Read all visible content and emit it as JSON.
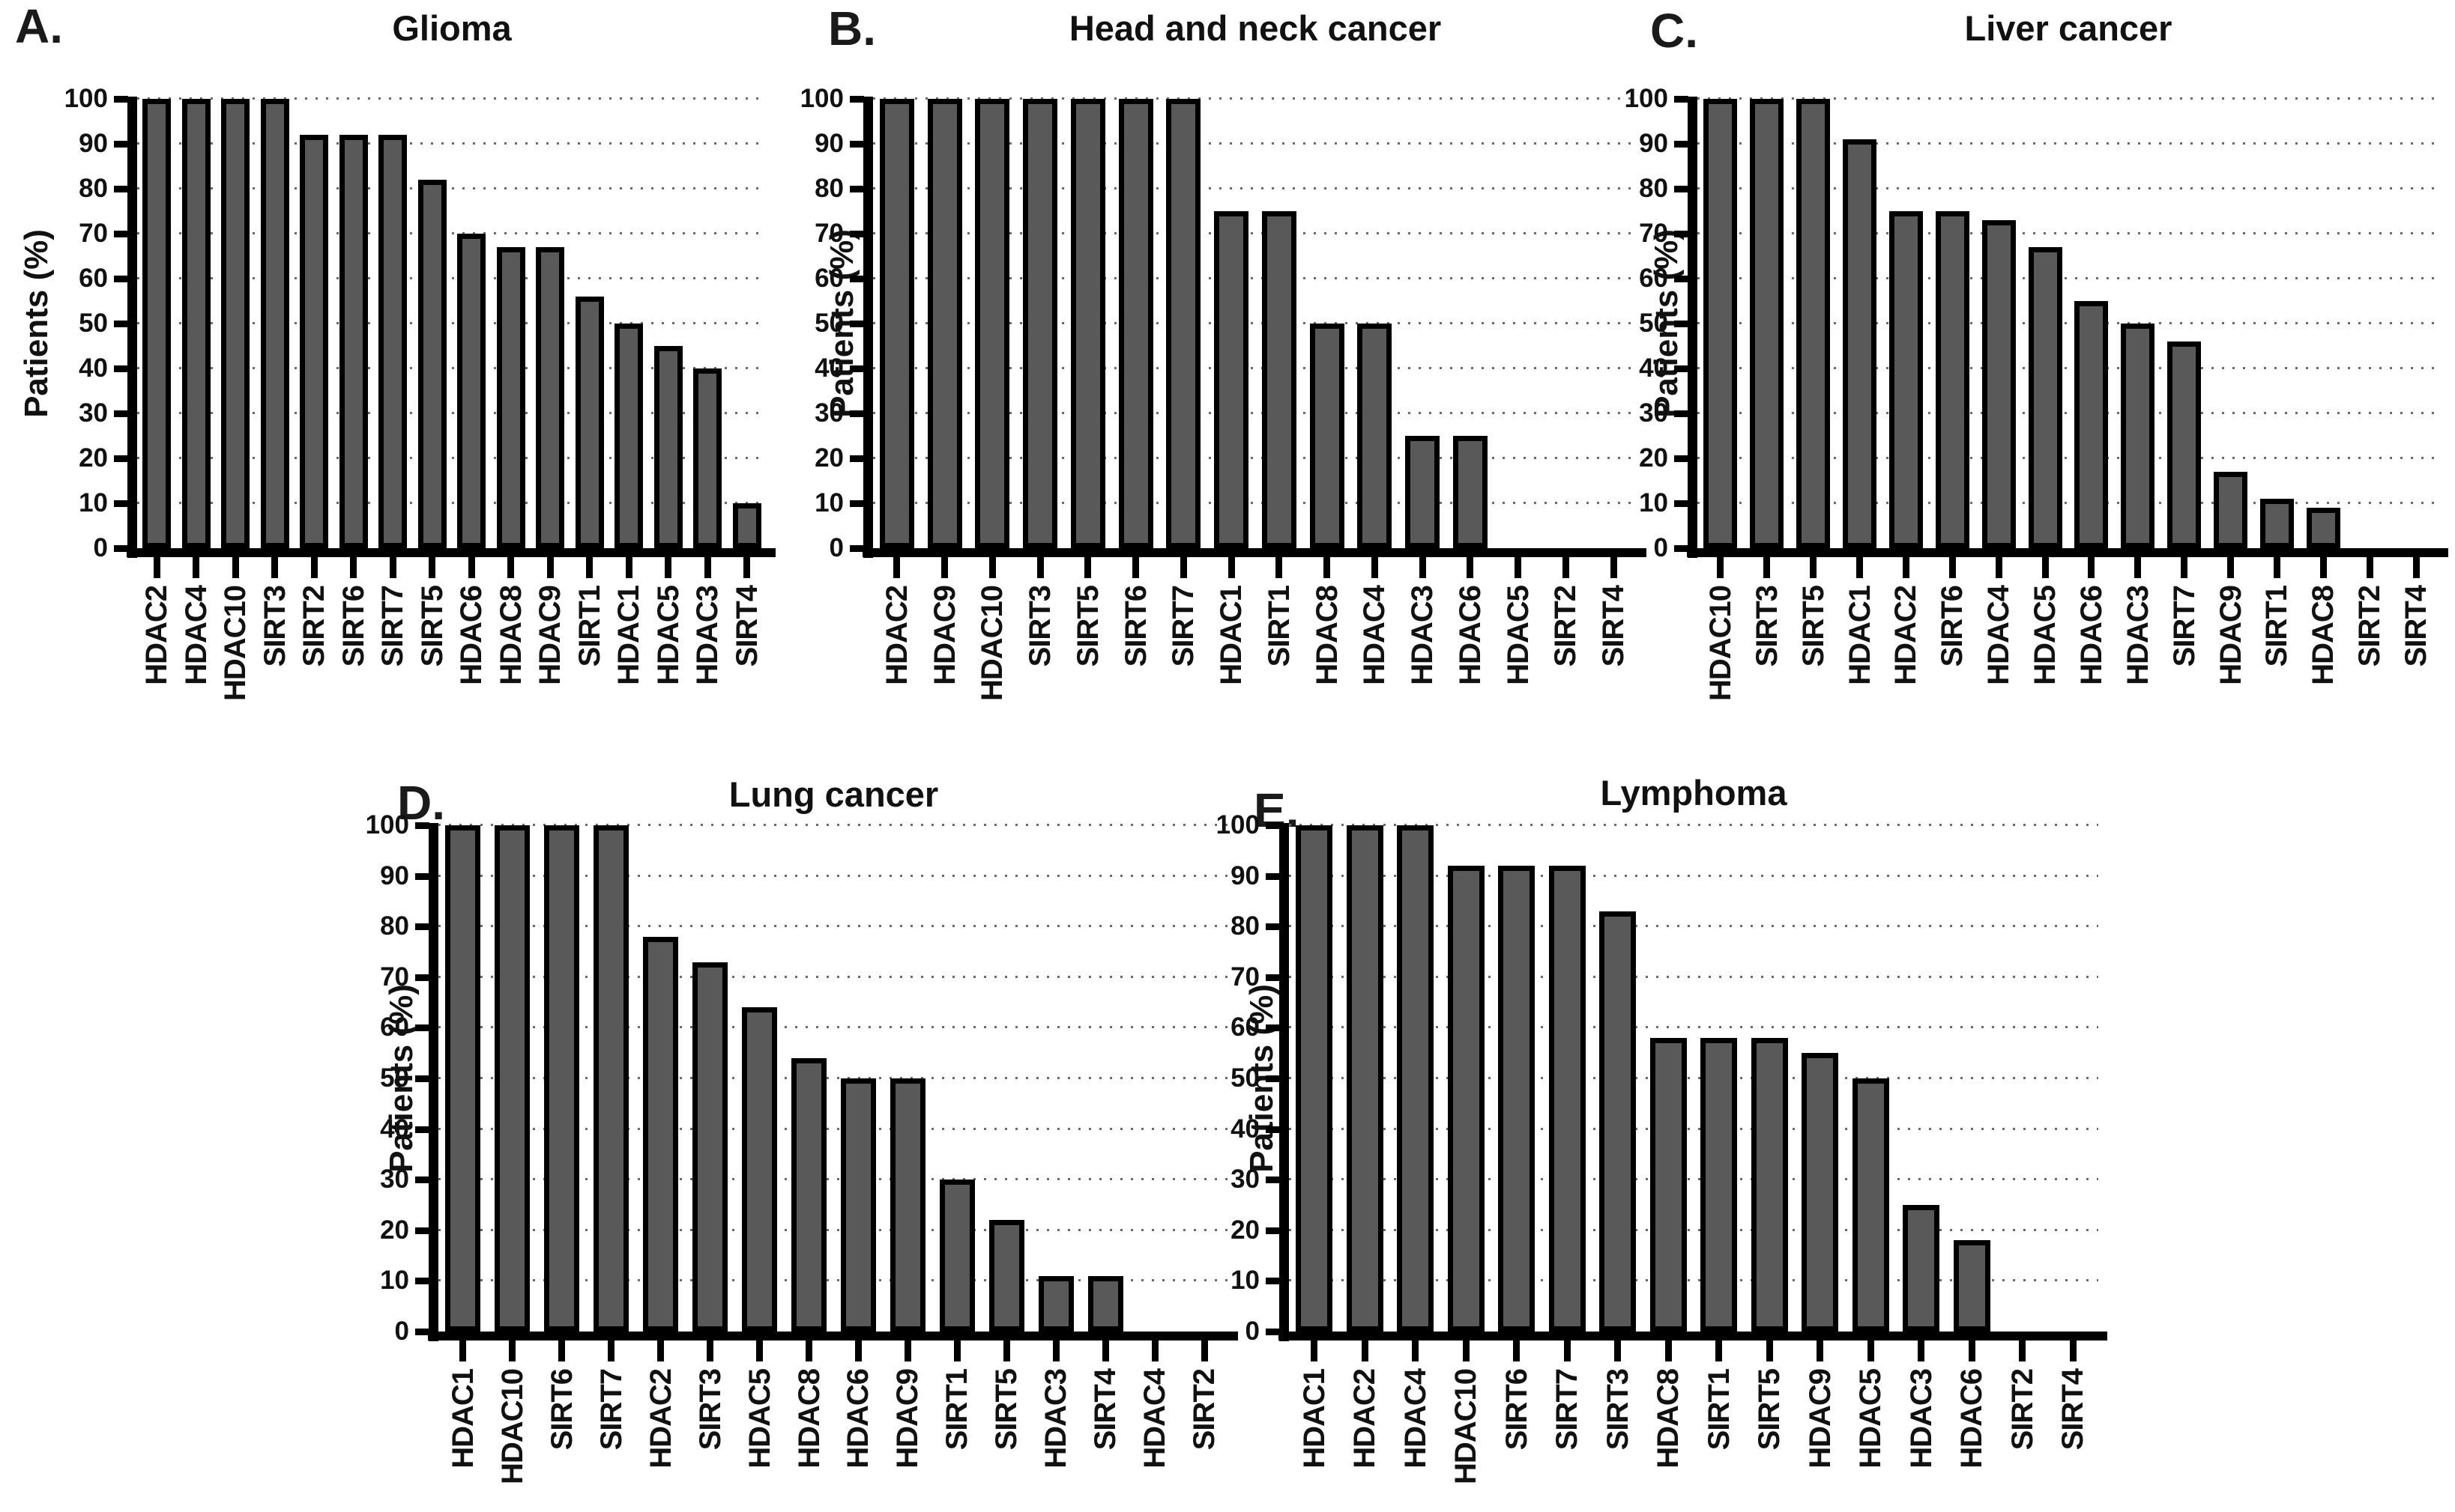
{
  "colors": {
    "bar_fill": "#595959",
    "bar_border": "#000000",
    "axis": "#000000",
    "gridline": "#6a6a6a",
    "text": "#000000",
    "background": "#ffffff"
  },
  "chart_data": [
    {
      "type": "bar",
      "panel_letter": "A.",
      "title": "Glioma",
      "xlabel": "",
      "ylabel": "Patients (%)",
      "ylim": [
        0,
        100
      ],
      "ytick_step": 10,
      "grid": "dotted-horizontal",
      "legend": "none",
      "categories": [
        "HDAC2",
        "HDAC4",
        "HDAC10",
        "SIRT3",
        "SIRT2",
        "SIRT6",
        "SIRT7",
        "SIRT5",
        "HDAC6",
        "HDAC8",
        "HDAC9",
        "SIRT1",
        "HDAC1",
        "HDAC5",
        "HDAC3",
        "SIRT4"
      ],
      "values": [
        100,
        100,
        100,
        100,
        92,
        92,
        92,
        82,
        70,
        67,
        67,
        56,
        50,
        45,
        40,
        10
      ]
    },
    {
      "type": "bar",
      "panel_letter": "B.",
      "title": "Head and neck cancer",
      "xlabel": "",
      "ylabel": "Patients (%)",
      "ylim": [
        0,
        100
      ],
      "ytick_step": 10,
      "grid": "dotted-horizontal",
      "legend": "none",
      "categories": [
        "HDAC2",
        "HDAC9",
        "HDAC10",
        "SIRT3",
        "SIRT5",
        "SIRT6",
        "SIRT7",
        "HDAC1",
        "SIRT1",
        "HDAC8",
        "HDAC4",
        "HDAC3",
        "HDAC6",
        "HDAC5",
        "SIRT2",
        "SIRT4"
      ],
      "values": [
        100,
        100,
        100,
        100,
        100,
        100,
        100,
        75,
        75,
        50,
        50,
        25,
        25,
        0,
        0,
        0
      ]
    },
    {
      "type": "bar",
      "panel_letter": "C.",
      "title": "Liver cancer",
      "xlabel": "",
      "ylabel": "Patients (%)",
      "ylim": [
        0,
        100
      ],
      "ytick_step": 10,
      "grid": "dotted-horizontal",
      "legend": "none",
      "categories": [
        "HDAC10",
        "SIRT3",
        "SIRT5",
        "HDAC1",
        "HDAC2",
        "SIRT6",
        "HDAC4",
        "HDAC5",
        "HDAC6",
        "HDAC3",
        "SIRT7",
        "HDAC9",
        "SIRT1",
        "HDAC8",
        "SIRT2",
        "SIRT4"
      ],
      "values": [
        100,
        100,
        100,
        91,
        75,
        75,
        73,
        67,
        55,
        50,
        46,
        17,
        11,
        9,
        0,
        0
      ]
    },
    {
      "type": "bar",
      "panel_letter": "D.",
      "title": "Lung cancer",
      "xlabel": "",
      "ylabel": "Patients (%)",
      "ylim": [
        0,
        100
      ],
      "ytick_step": 10,
      "grid": "dotted-horizontal",
      "legend": "none",
      "categories": [
        "HDAC1",
        "HDAC10",
        "SIRT6",
        "SIRT7",
        "HDAC2",
        "SIRT3",
        "HDAC5",
        "HDAC8",
        "HDAC6",
        "HDAC9",
        "SIRT1",
        "SIRT5",
        "HDAC3",
        "SIRT4",
        "HDAC4",
        "SIRT2"
      ],
      "values": [
        100,
        100,
        100,
        100,
        78,
        73,
        64,
        54,
        50,
        50,
        30,
        22,
        11,
        11,
        0,
        0
      ]
    },
    {
      "type": "bar",
      "panel_letter": "E.",
      "title": "Lymphoma",
      "xlabel": "",
      "ylabel": "Patients (%)",
      "ylim": [
        0,
        100
      ],
      "ytick_step": 10,
      "grid": "dotted-horizontal",
      "legend": "none",
      "categories": [
        "HDAC1",
        "HDAC2",
        "HDAC4",
        "HDAC10",
        "SIRT6",
        "SIRT7",
        "SIRT3",
        "HDAC8",
        "SIRT1",
        "SIRT5",
        "HDAC9",
        "HDAC5",
        "HDAC3",
        "HDAC6",
        "SIRT2",
        "SIRT4"
      ],
      "values": [
        100,
        100,
        100,
        92,
        92,
        92,
        83,
        58,
        58,
        58,
        55,
        50,
        25,
        18,
        0,
        0
      ]
    }
  ]
}
